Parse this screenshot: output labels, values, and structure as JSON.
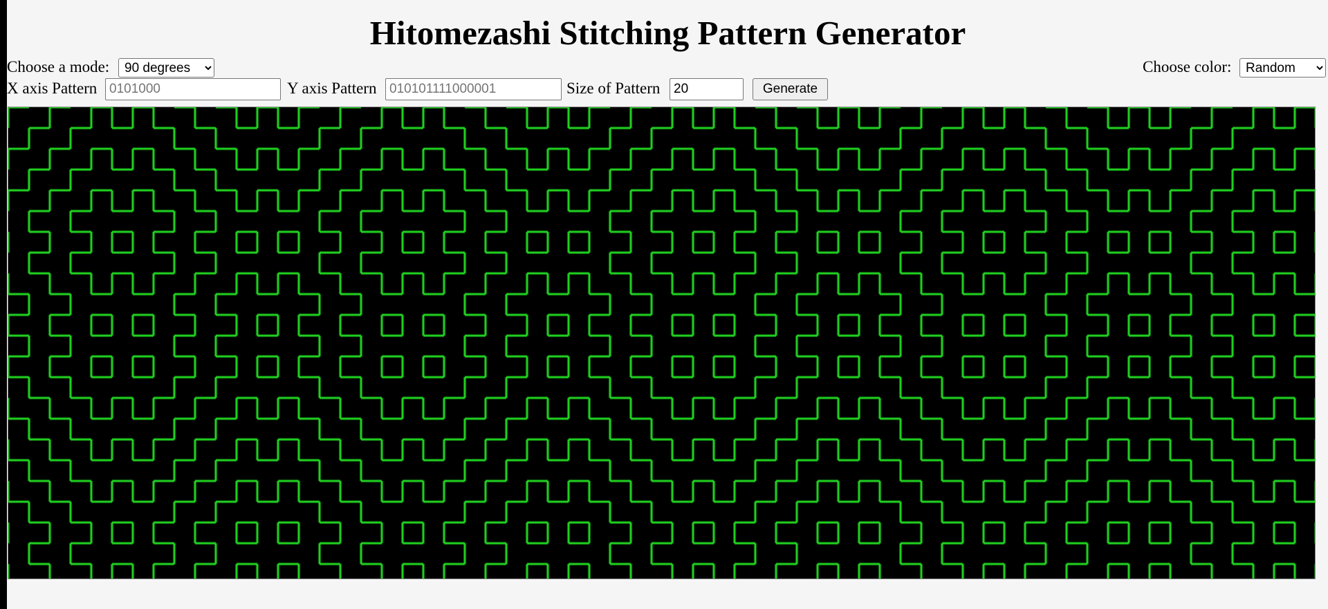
{
  "title": "Hitomezashi Stitching Pattern Generator",
  "controls": {
    "mode_label": "Choose a mode:",
    "mode_value": "90 degrees",
    "color_label": "Choose color:",
    "color_value": "Random",
    "x_label": "X axis Pattern",
    "x_placeholder": "0101000",
    "y_label": "Y axis Pattern",
    "y_placeholder": "010101111000001",
    "size_label": "Size of Pattern",
    "size_value": "20",
    "generate_label": "Generate"
  },
  "canvas": {
    "stroke_color": "#22dd22",
    "background_color": "#000000"
  }
}
